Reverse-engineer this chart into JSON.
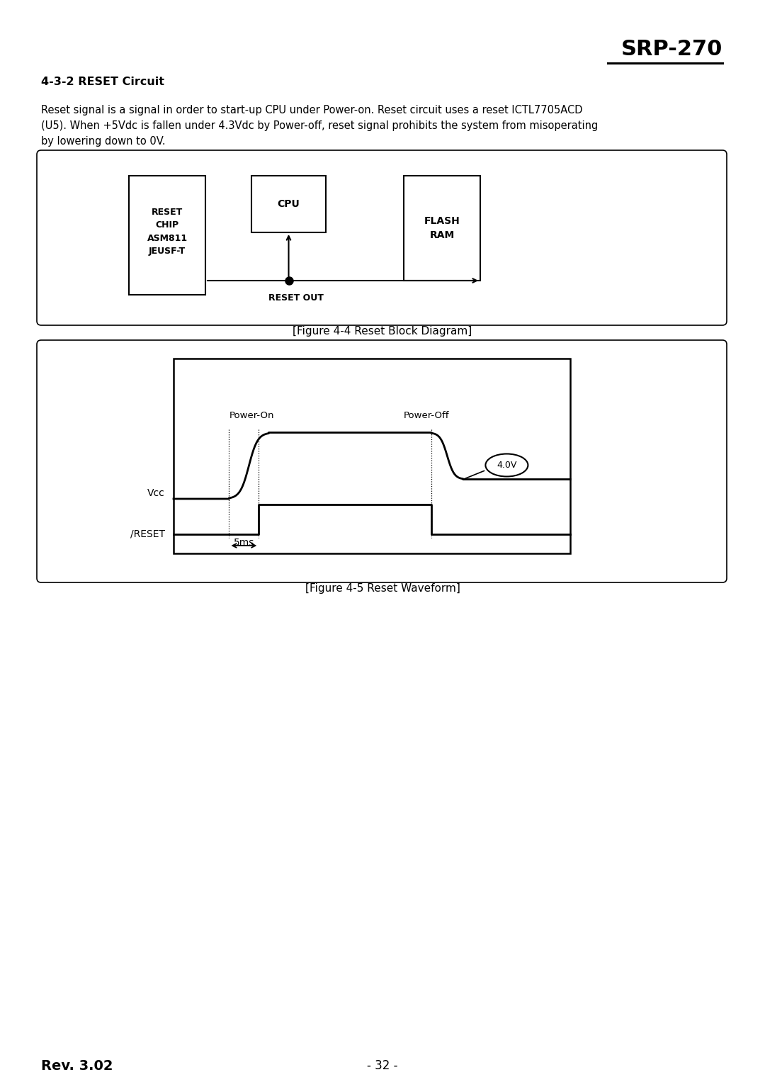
{
  "page_bg": "#ffffff",
  "title": "SRP-270",
  "section_title": "4-3-2 RESET Circuit",
  "body_text_line1": "Reset signal is a signal in order to start-up CPU under Power-on. Reset circuit uses a reset ICTL7705ACD",
  "body_text_line2": "(U5). When +5Vdc is fallen under 4.3Vdc by Power-off, reset signal prohibits the system from misoperating",
  "body_text_line3": "by lowering down to 0V.",
  "fig1_caption": "[Figure 4-4 Reset Block Diagram]",
  "fig2_caption": "[Figure 4-5 Reset Waveform]",
  "reset_chip_label": "RESET\nCHIP\nASM811\nJEUSF-T",
  "cpu_label": "CPU",
  "flash_label": "FLASH\nRAM",
  "reset_out_label": "RESET OUT",
  "power_on_label": "Power-On",
  "power_off_label": "Power-Off",
  "vcc_label": "Vcc",
  "reset_label": "/RESET",
  "voltage_label": "4.0V",
  "time_label": "5ms",
  "footer_left": "Rev. 3.02",
  "footer_center": "- 32 -"
}
